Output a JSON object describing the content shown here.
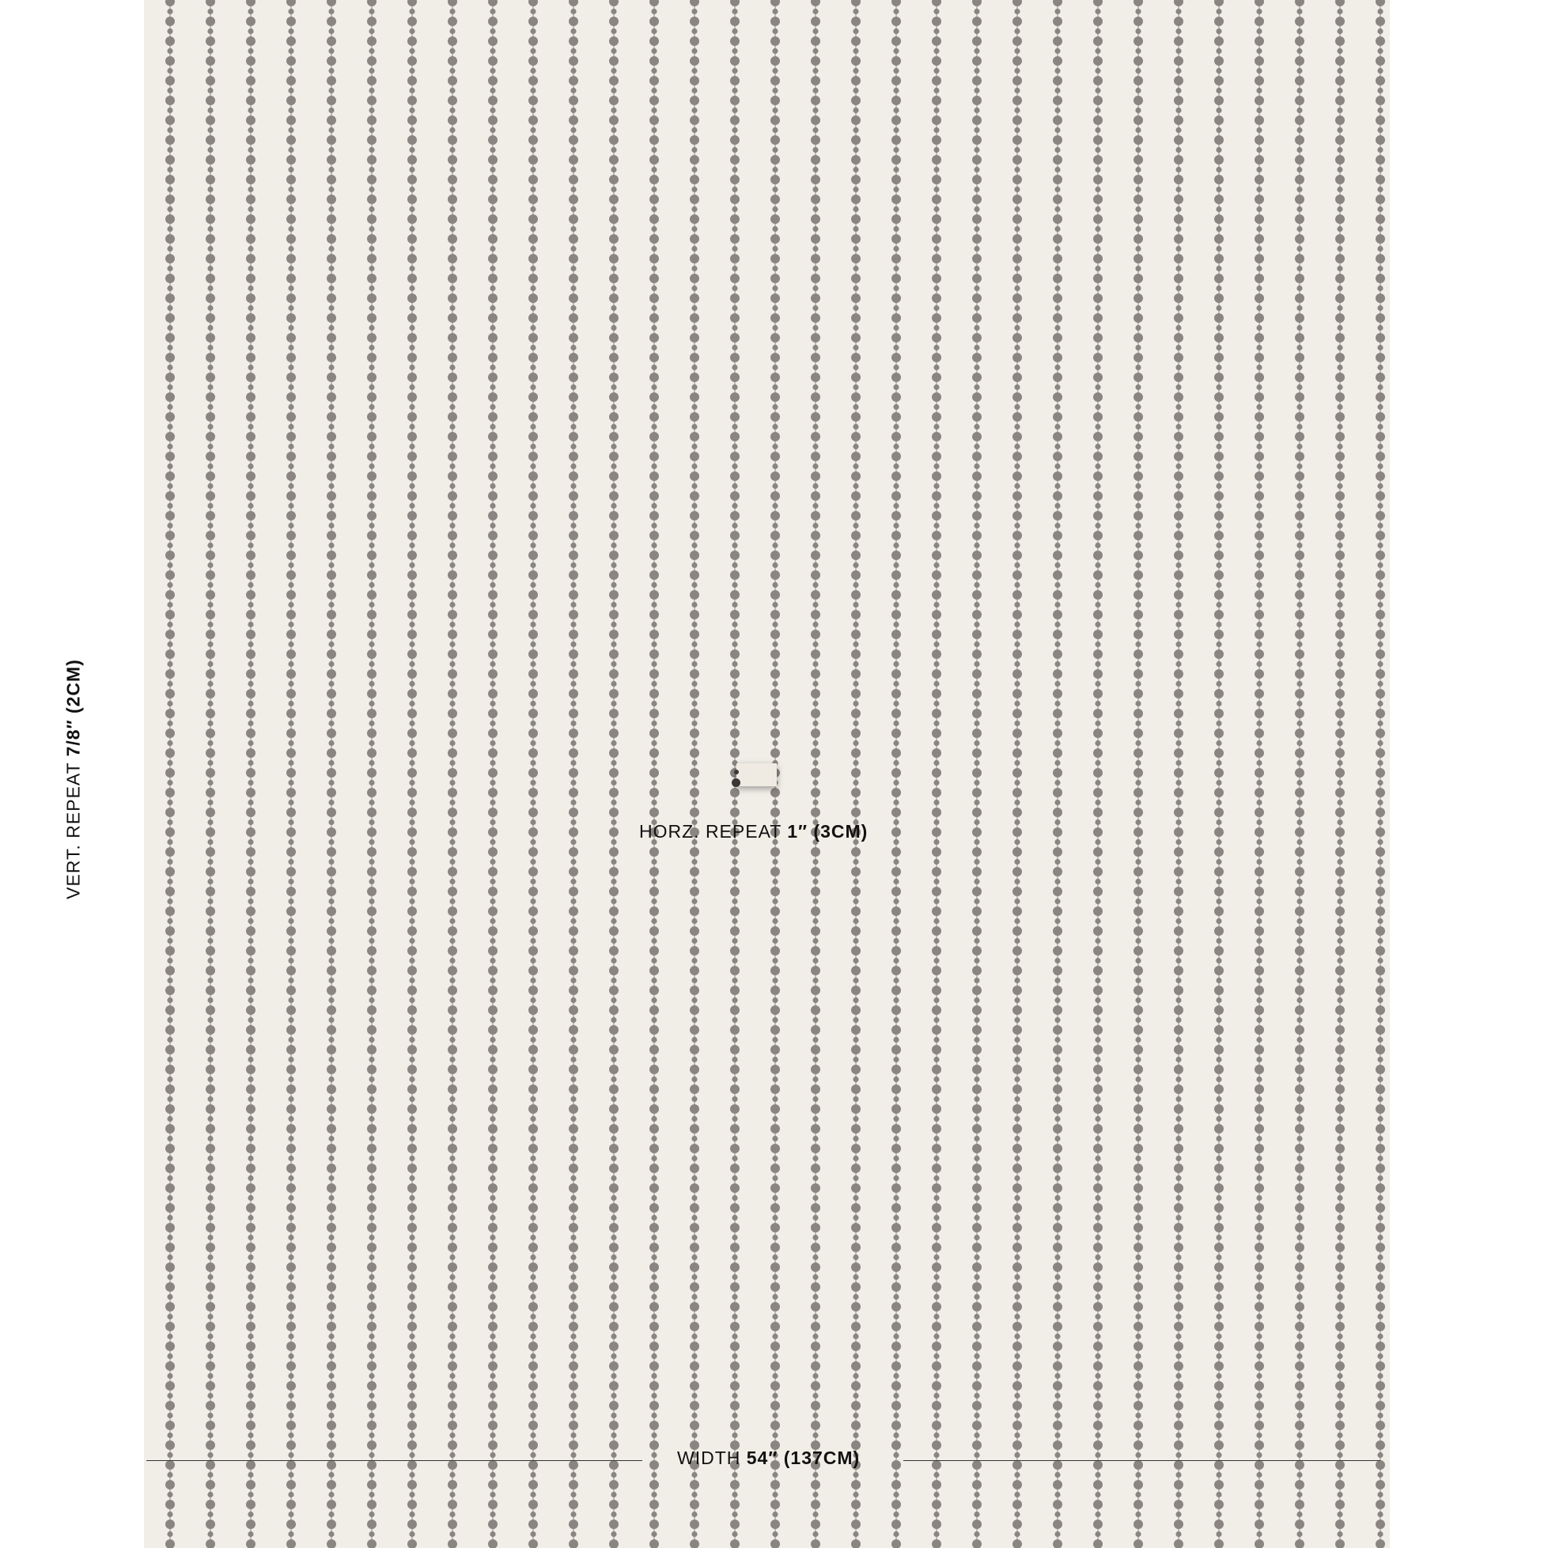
{
  "labels": {
    "horz_prefix": "HORZ. REPEAT ",
    "horz_value": "1″ (3CM)",
    "width_prefix": "WIDTH ",
    "width_value": "54″ (137CM)",
    "vert_prefix": "VERT. REPEAT ",
    "vert_value": "7/8″ (2CM)"
  },
  "colors": {
    "ground": "#f1eee7",
    "dots": "#8a8581",
    "text": "#111111"
  },
  "pattern": "vertical-beaded-dot-stripe"
}
